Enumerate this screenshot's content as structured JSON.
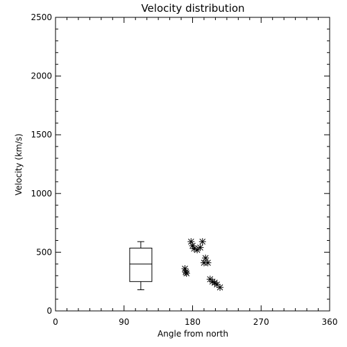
{
  "chart_data": {
    "type": "scatter",
    "title": "Velocity distribution",
    "xlabel": "Angle from north",
    "ylabel": "Velocity (km/s)",
    "xlim": [
      0,
      360
    ],
    "ylim": [
      0,
      2500
    ],
    "xticks": [
      0,
      90,
      180,
      270,
      360
    ],
    "yticks": [
      0,
      500,
      1000,
      1500,
      2000,
      2500
    ],
    "grid": false,
    "legend": "none",
    "marker": "asterisk",
    "color": "#000000",
    "boxplot": {
      "x": 112,
      "min": 180,
      "q1": 250,
      "median": 400,
      "q3": 535,
      "max": 590
    },
    "points": [
      {
        "x": 170,
        "y": 360
      },
      {
        "x": 171,
        "y": 330
      },
      {
        "x": 172,
        "y": 320
      },
      {
        "x": 178,
        "y": 590
      },
      {
        "x": 180,
        "y": 555
      },
      {
        "x": 182,
        "y": 530
      },
      {
        "x": 186,
        "y": 520
      },
      {
        "x": 190,
        "y": 540
      },
      {
        "x": 193,
        "y": 590
      },
      {
        "x": 195,
        "y": 410
      },
      {
        "x": 197,
        "y": 450
      },
      {
        "x": 200,
        "y": 410
      },
      {
        "x": 203,
        "y": 270
      },
      {
        "x": 206,
        "y": 250
      },
      {
        "x": 209,
        "y": 240
      },
      {
        "x": 212,
        "y": 225
      },
      {
        "x": 216,
        "y": 200
      }
    ]
  }
}
